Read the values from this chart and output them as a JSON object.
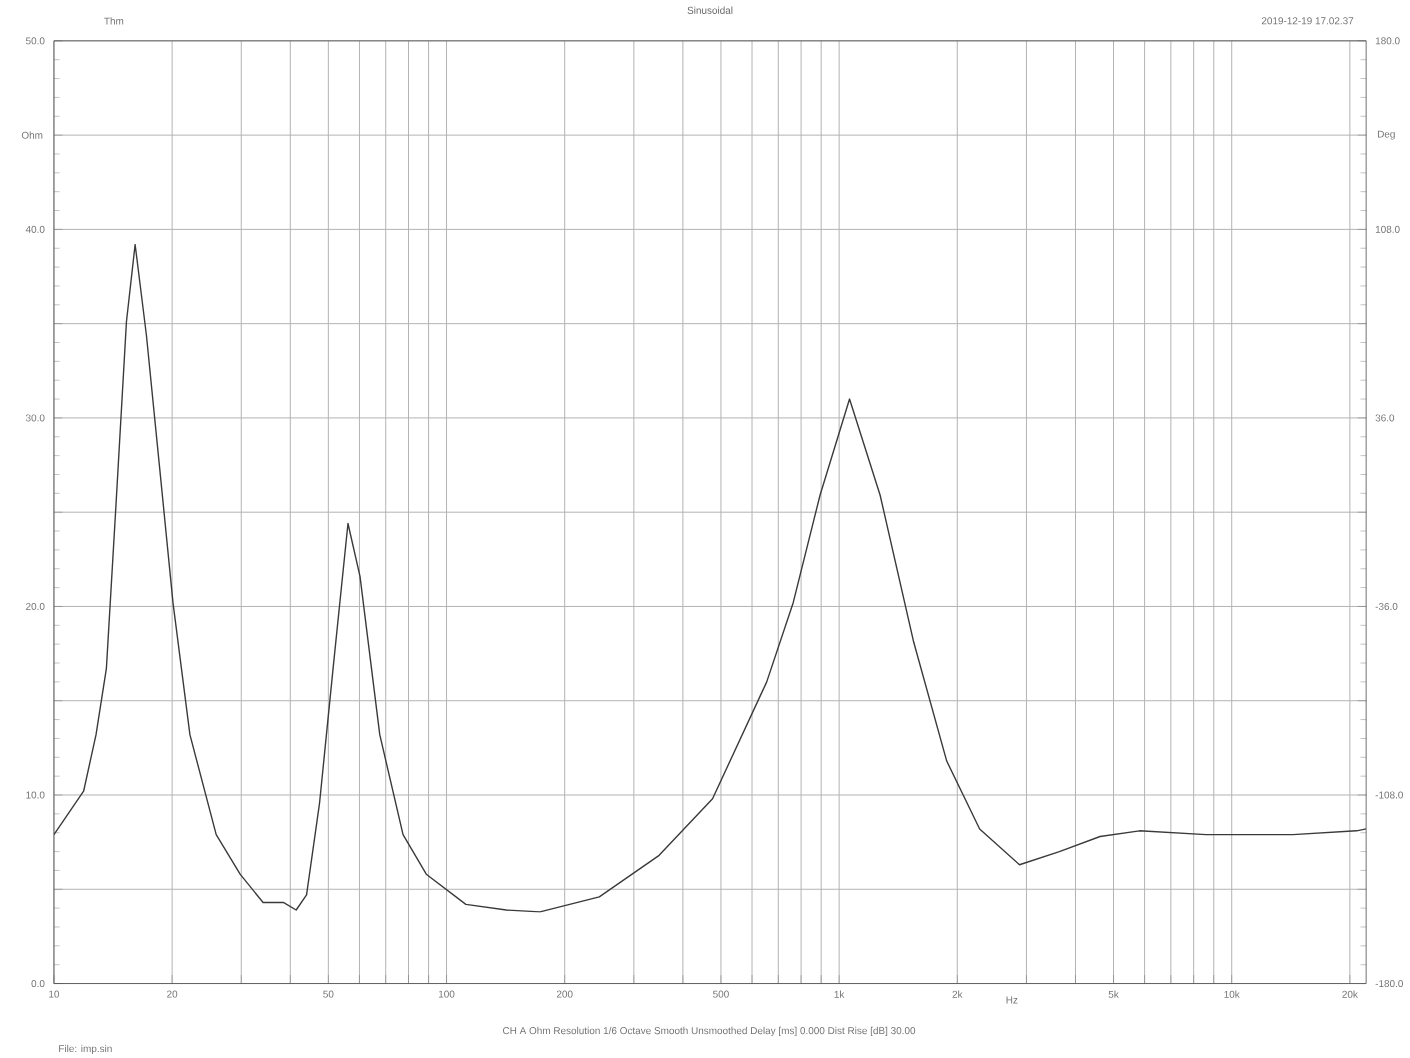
{
  "chart_data": {
    "type": "line",
    "title": "Sinusoidal",
    "xlabel": "Hz",
    "ylabel": "Ohm",
    "y2label": "Deg",
    "annotations": [
      "Thm",
      "2019-12-19 17.02.37",
      "CH A   Ohm   Resolution 1/6 Octave   Smooth Unsmoothed   Delay [ms] 0.000   Dist Rise [dB] 30.00",
      "File: imp.sin"
    ],
    "log": "x",
    "grid": true,
    "xlim": [
      10,
      22000
    ],
    "xticks": [
      10,
      20,
      {
        "value": 30,
        "label": null
      },
      {
        "value": 40,
        "label": null
      },
      50,
      {
        "value": 60,
        "label": null
      },
      {
        "value": 70,
        "label": null
      },
      {
        "value": 80,
        "label": null
      },
      {
        "value": 90,
        "label": null
      },
      100,
      200,
      {
        "value": 300,
        "label": null
      },
      {
        "value": 400,
        "label": null
      },
      500,
      {
        "value": 600,
        "label": null
      },
      {
        "value": 700,
        "label": null
      },
      {
        "value": 800,
        "label": null
      },
      {
        "value": 900,
        "label": null
      },
      {
        "value": 1000,
        "label": "1k"
      },
      {
        "value": 2000,
        "label": "2k"
      },
      {
        "value": 3000,
        "label": null
      },
      {
        "value": 4000,
        "label": null
      },
      {
        "value": 5000,
        "label": "5k"
      },
      {
        "value": 6000,
        "label": null
      },
      {
        "value": 7000,
        "label": null
      },
      {
        "value": 8000,
        "label": null
      },
      {
        "value": 9000,
        "label": null
      },
      {
        "value": 10000,
        "label": "10k"
      },
      {
        "value": 20000,
        "label": "20k"
      }
    ],
    "ylim": [
      0,
      50
    ],
    "yticks": [
      {
        "value": 0,
        "label": "0.0"
      },
      {
        "value": 5,
        "label": null
      },
      {
        "value": 10,
        "label": "10.0"
      },
      {
        "value": 15,
        "label": null
      },
      {
        "value": 20,
        "label": "20.0"
      },
      {
        "value": 25,
        "label": null
      },
      {
        "value": 30,
        "label": "30.0"
      },
      {
        "value": 35,
        "label": null
      },
      {
        "value": 40,
        "label": "40.0"
      },
      {
        "value": 45,
        "label": null
      },
      {
        "value": 50,
        "label": "50.0"
      }
    ],
    "y2lim": [
      -180,
      180
    ],
    "y2ticks": [
      {
        "value": -180,
        "label": "-180.0"
      },
      {
        "value": -144,
        "label": null
      },
      {
        "value": -108,
        "label": "-108.0"
      },
      {
        "value": -72,
        "label": null
      },
      {
        "value": -36,
        "label": "-36.0"
      },
      {
        "value": 0,
        "label": null
      },
      {
        "value": 36,
        "label": "36.0"
      },
      {
        "value": 72,
        "label": null
      },
      {
        "value": 108,
        "label": "108.0"
      },
      {
        "value": 144,
        "label": null
      },
      {
        "value": 180,
        "label": "180.0"
      }
    ],
    "series": [
      {
        "color": "#3a3a3a",
        "x": [
          10,
          11.9,
          12.8,
          13.6,
          14.4,
          15.3,
          16.1,
          17.2,
          18.6,
          20.1,
          22.2,
          25.9,
          29.8,
          34.1,
          38.4,
          41.4,
          44.0,
          47.5,
          51.4,
          56.1,
          60.2,
          67.6,
          77.5,
          88.8,
          112,
          142,
          173,
          245,
          348,
          476,
          654,
          764,
          894,
          1063,
          1272,
          1549,
          1880,
          2280,
          2880,
          3640,
          4620,
          5820,
          8600,
          14300,
          20800,
          22000
        ],
        "values": [
          7.9,
          10.2,
          13.2,
          16.7,
          25.5,
          35.1,
          39.2,
          34.4,
          27.3,
          20.2,
          13.2,
          7.9,
          5.8,
          4.3,
          4.3,
          3.9,
          4.7,
          9.6,
          16.7,
          24.4,
          21.6,
          13.2,
          7.9,
          5.8,
          4.2,
          3.9,
          3.8,
          4.6,
          6.8,
          9.8,
          16.0,
          20.2,
          25.9,
          31.0,
          25.9,
          18.1,
          11.8,
          8.2,
          6.3,
          7.0,
          7.8,
          8.1,
          7.9,
          7.9,
          8.1,
          8.2
        ]
      }
    ]
  }
}
